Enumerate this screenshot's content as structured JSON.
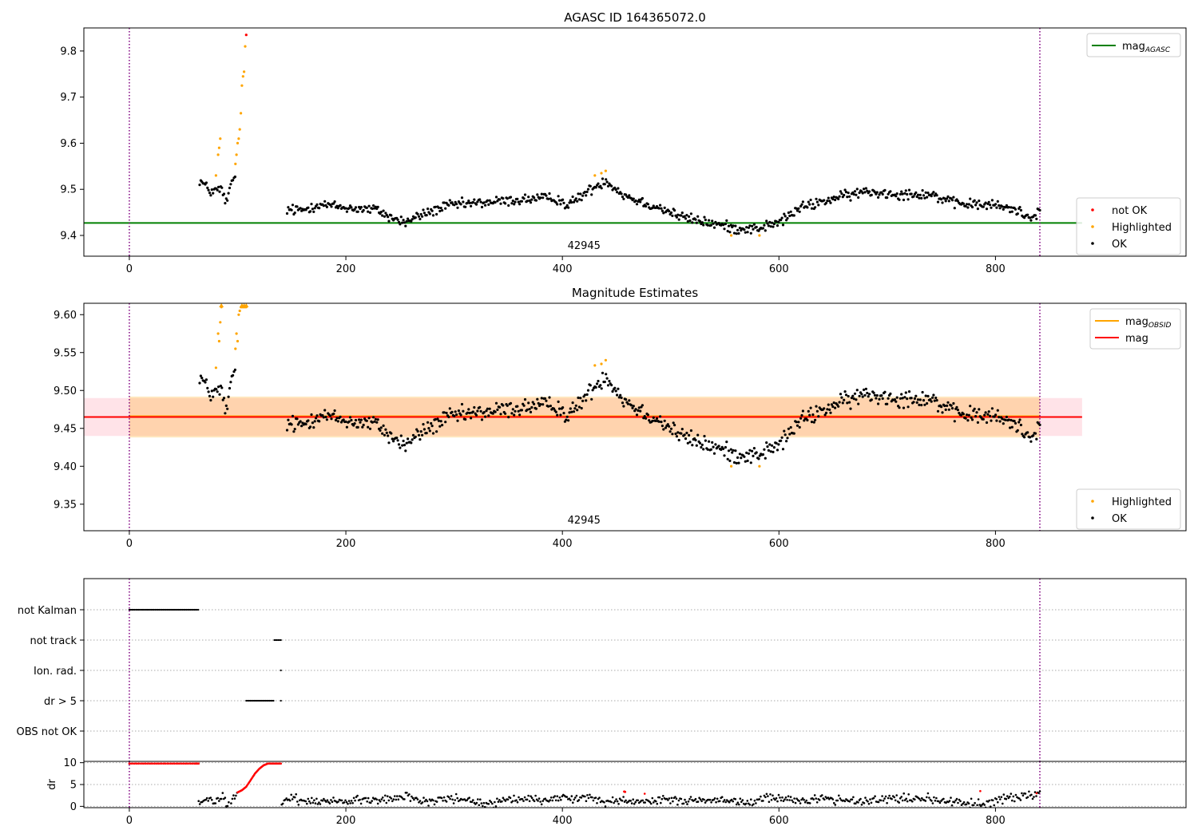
{
  "chart_data": [
    {
      "type": "scatter",
      "title": "AGASC ID 164365072.0",
      "xlim": [
        -42,
        976
      ],
      "ylim": [
        9.355,
        9.85
      ],
      "xticks": [
        "0",
        "200",
        "400",
        "600",
        "800"
      ],
      "yticks": [
        "9.4",
        "9.5",
        "9.6",
        "9.7",
        "9.8"
      ],
      "obsid_label": "42945",
      "obsid_label_x": 420,
      "vlines": [
        0,
        841
      ],
      "hline": {
        "name": "mag",
        "name_sub": "AGASC",
        "y": 9.427,
        "color": "#008000"
      },
      "legend_top": [
        {
          "label": "mag",
          "sub": "AGASC",
          "kind": "line",
          "color": "#008000"
        }
      ],
      "legend_bottom": [
        {
          "label": "not OK",
          "kind": "dot",
          "color": "#ff0000"
        },
        {
          "label": "Highlighted",
          "kind": "dot",
          "color": "#ffa500"
        },
        {
          "label": "OK",
          "kind": "dot",
          "color": "#000000"
        }
      ],
      "series": [
        {
          "name": "not OK",
          "color": "#ff0000",
          "points": [
            [
              108,
              9.835
            ]
          ]
        },
        {
          "name": "Highlighted",
          "color": "#ffa500",
          "points": [
            [
              80,
              9.53
            ],
            [
              82,
              9.575
            ],
            [
              83,
              9.59
            ],
            [
              84,
              9.61
            ],
            [
              98,
              9.555
            ],
            [
              99,
              9.575
            ],
            [
              100,
              9.6
            ],
            [
              101,
              9.61
            ],
            [
              102,
              9.63
            ],
            [
              103,
              9.665
            ],
            [
              104,
              9.725
            ],
            [
              105,
              9.745
            ],
            [
              106,
              9.755
            ],
            [
              107,
              9.81
            ],
            [
              430,
              9.53
            ],
            [
              436,
              9.535
            ],
            [
              440,
              9.54
            ],
            [
              556,
              9.4
            ],
            [
              582,
              9.4
            ]
          ]
        },
        {
          "name": "OK",
          "color": "#000000",
          "keyframes": [
            [
              65,
              9.52
            ],
            [
              75,
              9.495
            ],
            [
              85,
              9.5
            ],
            [
              90,
              9.47
            ],
            [
              95,
              9.52
            ],
            [
              97,
              9.525
            ],
            [
              145,
              9.455
            ],
            [
              160,
              9.455
            ],
            [
              175,
              9.468
            ],
            [
              200,
              9.46
            ],
            [
              230,
              9.455
            ],
            [
              240,
              9.44
            ],
            [
              255,
              9.428
            ],
            [
              270,
              9.445
            ],
            [
              295,
              9.465
            ],
            [
              320,
              9.47
            ],
            [
              350,
              9.475
            ],
            [
              375,
              9.48
            ],
            [
              395,
              9.48
            ],
            [
              405,
              9.465
            ],
            [
              420,
              9.49
            ],
            [
              440,
              9.52
            ],
            [
              455,
              9.49
            ],
            [
              470,
              9.475
            ],
            [
              490,
              9.46
            ],
            [
              510,
              9.44
            ],
            [
              530,
              9.43
            ],
            [
              560,
              9.415
            ],
            [
              580,
              9.415
            ],
            [
              600,
              9.428
            ],
            [
              620,
              9.46
            ],
            [
              650,
              9.48
            ],
            [
              680,
              9.495
            ],
            [
              710,
              9.49
            ],
            [
              740,
              9.49
            ],
            [
              760,
              9.47
            ],
            [
              800,
              9.465
            ],
            [
              820,
              9.455
            ],
            [
              830,
              9.44
            ],
            [
              841,
              9.45
            ]
          ],
          "gaps": [
            [
              98,
              145
            ]
          ],
          "jitter": 0.008,
          "n": 760
        }
      ]
    },
    {
      "type": "scatter",
      "title": "Magnitude Estimates",
      "xlim": [
        -42,
        976
      ],
      "ylim": [
        9.315,
        9.615
      ],
      "xticks": [
        "0",
        "200",
        "400",
        "600",
        "800"
      ],
      "yticks": [
        "9.35",
        "9.40",
        "9.45",
        "9.50",
        "9.55",
        "9.60"
      ],
      "obsid_label": "42945",
      "obsid_label_x": 420,
      "vlines": [
        0,
        841
      ],
      "bands": [
        {
          "x": [
            -42,
            880
          ],
          "y": [
            9.44,
            9.49
          ],
          "color": "#ffc0cb"
        },
        {
          "x": [
            0,
            841
          ],
          "y": [
            9.438,
            9.492
          ],
          "color": "#ffa500"
        }
      ],
      "hlines": [
        {
          "name": "mag",
          "sub": "OBSID",
          "x": [
            0,
            841
          ],
          "y": 9.466,
          "color": "#ffa500"
        },
        {
          "name": "mag",
          "x": [
            -42,
            880
          ],
          "y": 9.465,
          "color": "#ff0000"
        }
      ],
      "legend_top": [
        {
          "label": "mag",
          "sub": "OBSID",
          "kind": "line",
          "color": "#ffa500"
        },
        {
          "label": "mag",
          "kind": "line",
          "color": "#ff0000"
        }
      ],
      "legend_bottom": [
        {
          "label": "Highlighted",
          "kind": "dot",
          "color": "#ffa500"
        },
        {
          "label": "OK",
          "kind": "dot",
          "color": "#000000"
        }
      ],
      "series": [
        {
          "name": "Highlighted",
          "color": "#ffa500",
          "points": [
            [
              80,
              9.53
            ],
            [
              82,
              9.575
            ],
            [
              83,
              9.565
            ],
            [
              84,
              9.59
            ],
            [
              85,
              9.61
            ],
            [
              98,
              9.555
            ],
            [
              99,
              9.575
            ],
            [
              100,
              9.565
            ],
            [
              101,
              9.6
            ],
            [
              102,
              9.605
            ],
            [
              103,
              9.61
            ],
            [
              104,
              9.61
            ],
            [
              105,
              9.61
            ],
            [
              106,
              9.61
            ],
            [
              107,
              9.61
            ],
            [
              108,
              9.61
            ],
            [
              430,
              9.533
            ],
            [
              436,
              9.535
            ],
            [
              440,
              9.54
            ],
            [
              556,
              9.4
            ],
            [
              582,
              9.4
            ]
          ]
        },
        {
          "name": "OK",
          "color": "#000000",
          "keyframes": [
            [
              65,
              9.52
            ],
            [
              75,
              9.495
            ],
            [
              85,
              9.5
            ],
            [
              90,
              9.47
            ],
            [
              95,
              9.52
            ],
            [
              97,
              9.525
            ],
            [
              145,
              9.455
            ],
            [
              160,
              9.455
            ],
            [
              175,
              9.468
            ],
            [
              200,
              9.46
            ],
            [
              230,
              9.455
            ],
            [
              240,
              9.44
            ],
            [
              255,
              9.428
            ],
            [
              270,
              9.445
            ],
            [
              295,
              9.465
            ],
            [
              320,
              9.47
            ],
            [
              350,
              9.475
            ],
            [
              375,
              9.48
            ],
            [
              395,
              9.48
            ],
            [
              405,
              9.465
            ],
            [
              420,
              9.49
            ],
            [
              440,
              9.52
            ],
            [
              455,
              9.49
            ],
            [
              470,
              9.475
            ],
            [
              490,
              9.46
            ],
            [
              510,
              9.44
            ],
            [
              530,
              9.43
            ],
            [
              560,
              9.415
            ],
            [
              580,
              9.415
            ],
            [
              600,
              9.428
            ],
            [
              620,
              9.46
            ],
            [
              650,
              9.48
            ],
            [
              680,
              9.495
            ],
            [
              710,
              9.49
            ],
            [
              740,
              9.49
            ],
            [
              760,
              9.47
            ],
            [
              800,
              9.465
            ],
            [
              820,
              9.455
            ],
            [
              830,
              9.44
            ],
            [
              841,
              9.45
            ]
          ],
          "gaps": [
            [
              98,
              145
            ]
          ],
          "jitter": 0.008,
          "n": 760
        }
      ]
    },
    {
      "type": "scatter",
      "title": "",
      "xlim": [
        -42,
        976
      ],
      "categories": [
        "not Kalman",
        "not track",
        "Ion. rad.",
        "dr > 5",
        "OBS not OK"
      ],
      "vlines": [
        0,
        841
      ],
      "flags": [
        {
          "category": "not Kalman",
          "ranges": [
            [
              0,
              64
            ]
          ]
        },
        {
          "category": "not track",
          "ranges": [
            [
              134,
              140
            ]
          ]
        },
        {
          "category": "Ion. rad.",
          "ranges": [
            [
              140,
              140
            ]
          ]
        },
        {
          "category": "dr > 5",
          "ranges": [
            [
              108,
              134
            ],
            [
              140,
              140
            ]
          ]
        },
        {
          "category": "OBS not OK",
          "ranges": []
        }
      ]
    },
    {
      "type": "scatter",
      "title": "",
      "xlim": [
        -42,
        976
      ],
      "ylim": [
        -0.3,
        10.3
      ],
      "ylabel": "dr",
      "xticks": [
        "0",
        "200",
        "400",
        "600",
        "800"
      ],
      "yticks": [
        "0",
        "5",
        "10"
      ],
      "vlines": [
        0,
        841
      ],
      "series": [
        {
          "name": "not OK",
          "color": "#ff0000",
          "points": [
            [
              0,
              9.8
            ],
            [
              10,
              9.8
            ],
            [
              20,
              9.8
            ],
            [
              30,
              9.8
            ],
            [
              40,
              9.8
            ],
            [
              50,
              9.8
            ],
            [
              60,
              9.8
            ],
            [
              64,
              9.8
            ],
            [
              100,
              3.2
            ],
            [
              104,
              3.7
            ],
            [
              108,
              4.5
            ],
            [
              112,
              6.0
            ],
            [
              116,
              7.5
            ],
            [
              120,
              8.6
            ],
            [
              124,
              9.4
            ],
            [
              128,
              9.8
            ],
            [
              134,
              9.8
            ],
            [
              140,
              9.8
            ],
            [
              457,
              3.4
            ],
            [
              458,
              3.3
            ],
            [
              476,
              2.9
            ],
            [
              786,
              3.5
            ],
            [
              838,
              3.0
            ]
          ]
        },
        {
          "name": "OK",
          "color": "#000000",
          "keyframes": [
            [
              64,
              0.6
            ],
            [
              70,
              1.5
            ],
            [
              78,
              1.0
            ],
            [
              86,
              2.0
            ],
            [
              92,
              0.4
            ],
            [
              100,
              2.8
            ],
            [
              140,
              0.6
            ],
            [
              150,
              1.8
            ],
            [
              170,
              1.2
            ],
            [
              200,
              1.3
            ],
            [
              240,
              1.6
            ],
            [
              255,
              2.5
            ],
            [
              270,
              1.2
            ],
            [
              300,
              1.8
            ],
            [
              330,
              0.6
            ],
            [
              360,
              1.6
            ],
            [
              380,
              1.4
            ],
            [
              400,
              2.0
            ],
            [
              420,
              2.2
            ],
            [
              440,
              1.0
            ],
            [
              460,
              1.5
            ],
            [
              480,
              1.0
            ],
            [
              500,
              1.8
            ],
            [
              520,
              1.0
            ],
            [
              550,
              1.5
            ],
            [
              570,
              0.8
            ],
            [
              590,
              2.0
            ],
            [
              610,
              1.2
            ],
            [
              640,
              1.8
            ],
            [
              680,
              1.3
            ],
            [
              720,
              2.0
            ],
            [
              760,
              1.0
            ],
            [
              790,
              0.5
            ],
            [
              810,
              1.8
            ],
            [
              841,
              2.8
            ]
          ],
          "gaps": [
            [
              100,
              140
            ]
          ],
          "jitter": 0.7,
          "n": 700
        }
      ]
    }
  ]
}
